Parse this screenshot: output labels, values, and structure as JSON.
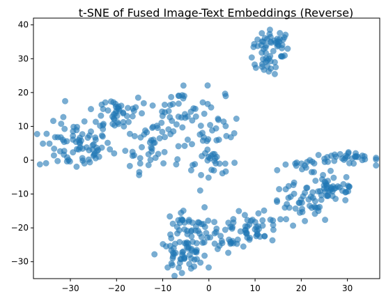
{
  "chart_data": {
    "type": "scatter",
    "title": "t-SNE of Fused Image-Text Embeddings (Reverse)",
    "xlabel": "",
    "ylabel": "",
    "xlim": [
      -38,
      37
    ],
    "ylim": [
      -35,
      42
    ],
    "xticks": [
      -30,
      -20,
      -10,
      0,
      10,
      20,
      30
    ],
    "yticks": [
      -30,
      -20,
      -10,
      0,
      10,
      20,
      30,
      40
    ],
    "grid": false,
    "legend": "none",
    "color": "#1f77b4",
    "alpha": 0.6,
    "clusters": [
      {
        "cx": 14,
        "cy": 34.5,
        "rx": 2.1,
        "ry": 2.0,
        "n": 40
      },
      {
        "cx": 13,
        "cy": 28.5,
        "rx": 1.8,
        "ry": 1.5,
        "n": 20
      },
      {
        "cx": -29,
        "cy": 4,
        "rx": 4.0,
        "ry": 3.5,
        "n": 75
      },
      {
        "cx": -20,
        "cy": 14,
        "rx": 3.2,
        "ry": 3.0,
        "n": 45
      },
      {
        "cx": -12,
        "cy": 6,
        "rx": 3.0,
        "ry": 4.5,
        "n": 45
      },
      {
        "cx": -6,
        "cy": 16,
        "rx": 2.8,
        "ry": 3.5,
        "n": 28
      },
      {
        "cx": 1,
        "cy": 8,
        "rx": 2.8,
        "ry": 5.0,
        "n": 35
      },
      {
        "cx": 1,
        "cy": -1,
        "rx": 2.8,
        "ry": 1.6,
        "n": 18
      },
      {
        "cx": 29,
        "cy": 0.5,
        "rx": 4.5,
        "ry": 0.8,
        "n": 35
      },
      {
        "cx": 27,
        "cy": -8,
        "rx": 2.8,
        "ry": 2.3,
        "n": 40
      },
      {
        "cx": 20,
        "cy": -13,
        "rx": 3.5,
        "ry": 3.0,
        "n": 45
      },
      {
        "cx": 11,
        "cy": -21,
        "rx": 3.0,
        "ry": 2.5,
        "n": 35
      },
      {
        "cx": 5,
        "cy": -21,
        "rx": 2.5,
        "ry": 2.5,
        "n": 30
      },
      {
        "cx": -2,
        "cy": -23,
        "rx": 2.5,
        "ry": 3.0,
        "n": 25
      },
      {
        "cx": -6,
        "cy": -28,
        "rx": 2.5,
        "ry": 2.2,
        "n": 45
      },
      {
        "cx": -6,
        "cy": -19,
        "rx": 2.5,
        "ry": 2.5,
        "n": 25
      },
      {
        "cx": 20,
        "cy": -3,
        "rx": 2.5,
        "ry": 1.5,
        "n": 12
      },
      {
        "cx": -14,
        "cy": -1,
        "rx": 1.5,
        "ry": 2.0,
        "n": 6
      }
    ]
  }
}
